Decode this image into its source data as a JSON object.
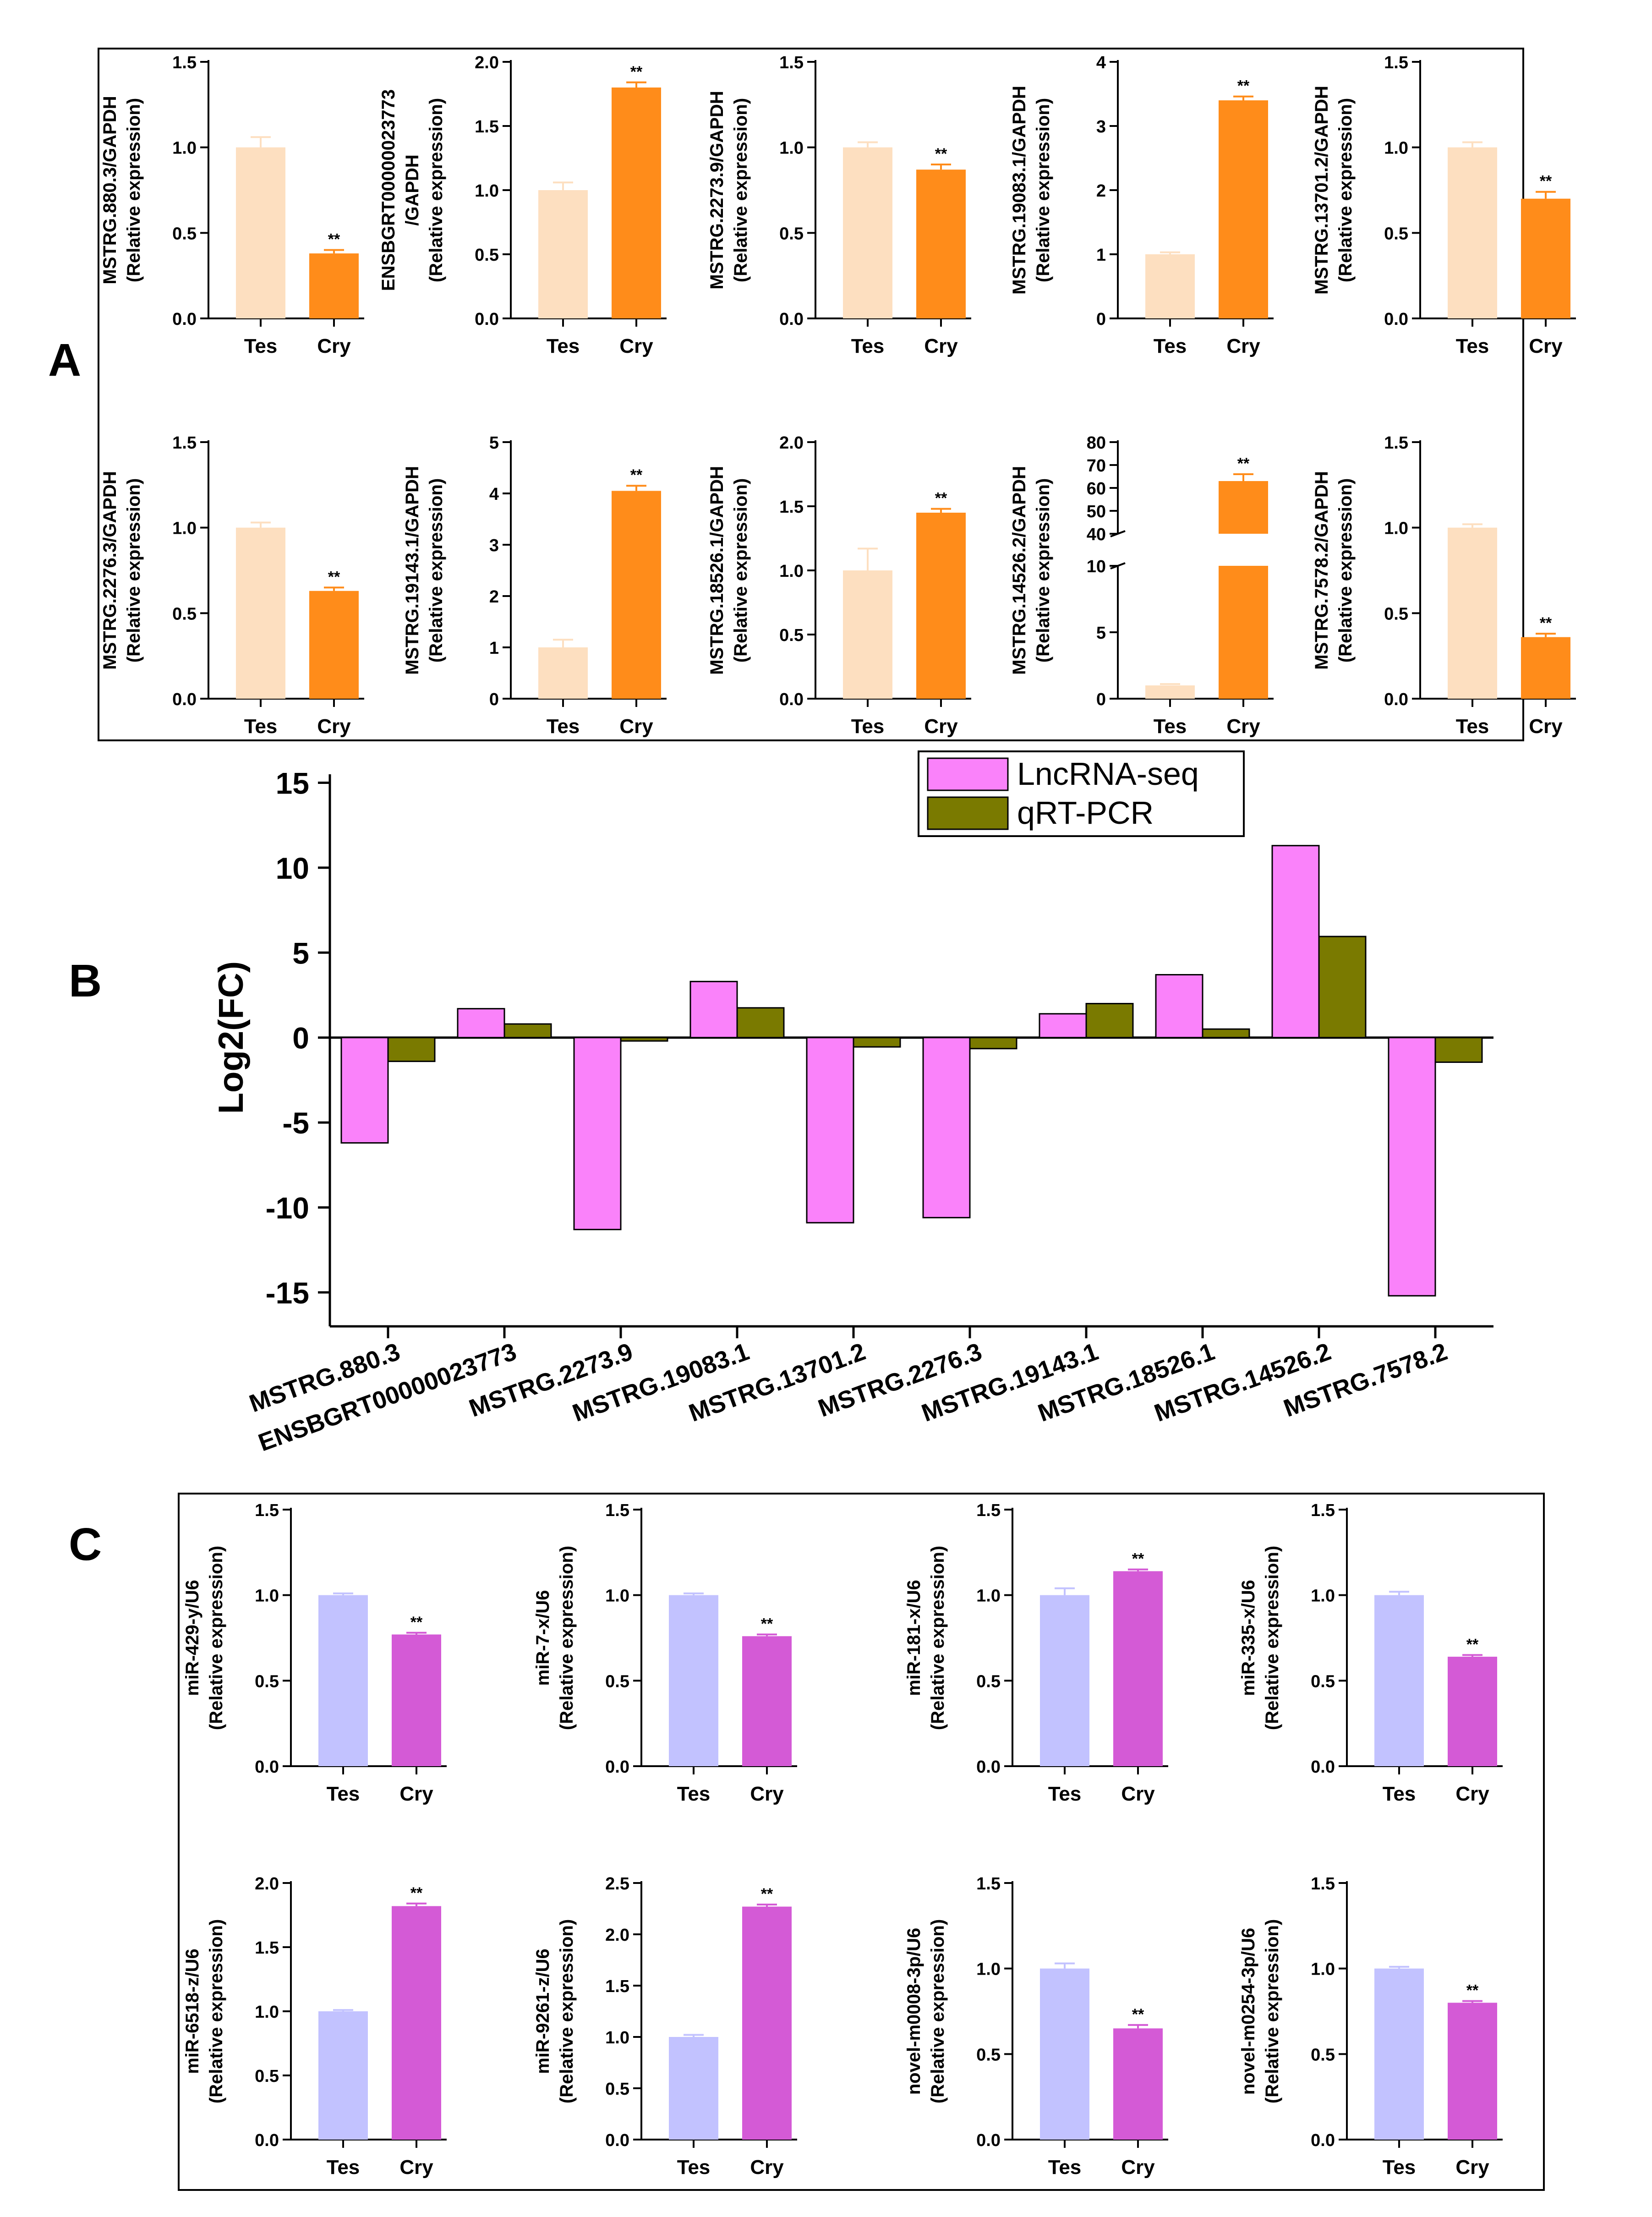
{
  "colors": {
    "lnc_tes": "#FDDFC0",
    "lnc_cry": "#FF8C1A",
    "mir_tes": "#C2C2FF",
    "mir_cry": "#D45AD6",
    "lncrna_seq": "#FA82FA",
    "qrt_pcr": "#7A7A00",
    "axis": "#000000"
  },
  "panel_labels": {
    "a": "A",
    "b": "B",
    "c": "C"
  },
  "chart_data": [
    {
      "id": "A",
      "type": "bar",
      "description": "qRT-PCR relative expression of lncRNAs (normalized to GAPDH), Tes vs Cry",
      "categories": [
        "Tes",
        "Cry"
      ],
      "plots": [
        {
          "ylabel": "MSTRG.880.3/GAPDH",
          "ylabel2": "(Relative expression)",
          "ylim": [
            0,
            1.5
          ],
          "ticks": [
            "0.0",
            "0.5",
            "1.0",
            "1.5"
          ],
          "tickvals": [
            0,
            0.5,
            1,
            1.5
          ],
          "values": [
            1.0,
            0.38
          ],
          "errors": [
            0.06,
            0.02
          ],
          "sig": "**"
        },
        {
          "ylabel": "ENSBGRT00000023773",
          "ylabel1b": "/GAPDH",
          "ylabel2": "(Relative expression)",
          "ylim": [
            0,
            2.0
          ],
          "ticks": [
            "0.0",
            "0.5",
            "1.0",
            "1.5",
            "2.0"
          ],
          "tickvals": [
            0,
            0.5,
            1,
            1.5,
            2
          ],
          "values": [
            1.0,
            1.8
          ],
          "errors": [
            0.06,
            0.04
          ],
          "sig": "**"
        },
        {
          "ylabel": "MSTRG.2273.9/GAPDH",
          "ylabel2": "(Relative expression)",
          "ylim": [
            0,
            1.5
          ],
          "ticks": [
            "0.0",
            "0.5",
            "1.0",
            "1.5"
          ],
          "tickvals": [
            0,
            0.5,
            1,
            1.5
          ],
          "values": [
            1.0,
            0.87
          ],
          "errors": [
            0.03,
            0.03
          ],
          "sig": "**"
        },
        {
          "ylabel": "MSTRG.19083.1/GAPDH",
          "ylabel2": "(Relative expression)",
          "ylim": [
            0,
            4
          ],
          "ticks": [
            "0",
            "1",
            "2",
            "3",
            "4"
          ],
          "tickvals": [
            0,
            1,
            2,
            3,
            4
          ],
          "values": [
            1.0,
            3.4
          ],
          "errors": [
            0.03,
            0.06
          ],
          "sig": "**"
        },
        {
          "ylabel": "MSTRG.13701.2/GAPDH",
          "ylabel2": "(Relative expression)",
          "ylim": [
            0,
            1.5
          ],
          "ticks": [
            "0.0",
            "0.5",
            "1.0",
            "1.5"
          ],
          "tickvals": [
            0,
            0.5,
            1,
            1.5
          ],
          "values": [
            1.0,
            0.7
          ],
          "errors": [
            0.03,
            0.04
          ],
          "sig": "**"
        },
        {
          "ylabel": "MSTRG.2276.3/GAPDH",
          "ylabel2": "(Relative expression)",
          "ylim": [
            0,
            1.5
          ],
          "ticks": [
            "0.0",
            "0.5",
            "1.0",
            "1.5"
          ],
          "tickvals": [
            0,
            0.5,
            1,
            1.5
          ],
          "values": [
            1.0,
            0.63
          ],
          "errors": [
            0.03,
            0.02
          ],
          "sig": "**"
        },
        {
          "ylabel": "MSTRG.19143.1/GAPDH",
          "ylabel2": "(Relative expression)",
          "ylim": [
            0,
            5
          ],
          "ticks": [
            "0",
            "1",
            "2",
            "3",
            "4",
            "5"
          ],
          "tickvals": [
            0,
            1,
            2,
            3,
            4,
            5
          ],
          "values": [
            1.0,
            4.05
          ],
          "errors": [
            0.15,
            0.1
          ],
          "sig": "**"
        },
        {
          "ylabel": "MSTRG.18526.1/GAPDH",
          "ylabel2": "(Relative expression)",
          "ylim": [
            0,
            2.0
          ],
          "ticks": [
            "0.0",
            "0.5",
            "1.0",
            "1.5",
            "2.0"
          ],
          "tickvals": [
            0,
            0.5,
            1,
            1.5,
            2
          ],
          "values": [
            1.0,
            1.45
          ],
          "errors": [
            0.17,
            0.03
          ],
          "sig": "**"
        },
        {
          "ylabel": "MSTRG.14526.2/GAPDH",
          "ylabel2": "(Relative expression)",
          "broken": true,
          "lower_ylim": [
            0,
            10
          ],
          "upper_ylim": [
            40,
            80
          ],
          "ticks": [
            "0",
            "5",
            "10",
            "40",
            "50",
            "60",
            "70",
            "80"
          ],
          "tickvals": [
            0,
            5,
            10,
            40,
            50,
            60,
            70,
            80
          ],
          "values": [
            1.0,
            63
          ],
          "errors": [
            0.1,
            3
          ],
          "sig": "**"
        },
        {
          "ylabel": "MSTRG.7578.2/GAPDH",
          "ylabel2": "(Relative expression)",
          "ylim": [
            0,
            1.5
          ],
          "ticks": [
            "0.0",
            "0.5",
            "1.0",
            "1.5"
          ],
          "tickvals": [
            0,
            0.5,
            1,
            1.5
          ],
          "values": [
            1.0,
            0.36
          ],
          "errors": [
            0.02,
            0.02
          ],
          "sig": "**"
        }
      ]
    },
    {
      "id": "B",
      "type": "bar",
      "ylabel": "Log2(FC)",
      "ylim": [
        -17,
        15.5
      ],
      "ticks": [
        "15",
        "10",
        "5",
        "0",
        "-5",
        "-10",
        "-15"
      ],
      "tickvals": [
        15,
        10,
        5,
        0,
        -5,
        -10,
        -15
      ],
      "categories": [
        "MSTRG.880.3",
        "ENSBGRT00000023773",
        "MSTRG.2273.9",
        "MSTRG.19083.1",
        "MSTRG.13701.2",
        "MSTRG.2276.3",
        "MSTRG.19143.1",
        "MSTRG.18526.1",
        "MSTRG.14526.2",
        "MSTRG.7578.2"
      ],
      "series": [
        {
          "name": "LncRNA-seq",
          "values": [
            -6.2,
            1.7,
            -11.3,
            3.3,
            -10.9,
            -10.6,
            1.4,
            3.7,
            11.3,
            -15.2
          ]
        },
        {
          "name": "qRT-PCR",
          "values": [
            -1.4,
            0.8,
            -0.2,
            1.75,
            -0.55,
            -0.65,
            2.0,
            0.5,
            5.95,
            -1.45
          ]
        }
      ],
      "legend": "top-right"
    },
    {
      "id": "C",
      "type": "bar",
      "description": "qRT-PCR relative expression of miRNAs (normalized to U6), Tes vs Cry",
      "categories": [
        "Tes",
        "Cry"
      ],
      "plots": [
        {
          "ylabel": "miR-429-y/U6",
          "ylabel2": "(Relative expression)",
          "ylim": [
            0,
            1.5
          ],
          "ticks": [
            "0.0",
            "0.5",
            "1.0",
            "1.5"
          ],
          "tickvals": [
            0,
            0.5,
            1,
            1.5
          ],
          "values": [
            1.0,
            0.77
          ],
          "errors": [
            0.01,
            0.01
          ],
          "sig": "**"
        },
        {
          "ylabel": "miR-7-x/U6",
          "ylabel2": "(Relative expression)",
          "ylim": [
            0,
            1.5
          ],
          "ticks": [
            "0.0",
            "0.5",
            "1.0",
            "1.5"
          ],
          "tickvals": [
            0,
            0.5,
            1,
            1.5
          ],
          "values": [
            1.0,
            0.76
          ],
          "errors": [
            0.01,
            0.01
          ],
          "sig": "**"
        },
        {
          "ylabel": "miR-181-x/U6",
          "ylabel2": "(Relative expression)",
          "ylim": [
            0,
            1.5
          ],
          "ticks": [
            "0.0",
            "0.5",
            "1.0",
            "1.5"
          ],
          "tickvals": [
            0,
            0.5,
            1,
            1.5
          ],
          "values": [
            1.0,
            1.14
          ],
          "errors": [
            0.04,
            0.01
          ],
          "sig": "**"
        },
        {
          "ylabel": "miR-335-x/U6",
          "ylabel2": "(Relative expression)",
          "ylim": [
            0,
            1.5
          ],
          "ticks": [
            "0.0",
            "0.5",
            "1.0",
            "1.5"
          ],
          "tickvals": [
            0,
            0.5,
            1,
            1.5
          ],
          "values": [
            1.0,
            0.64
          ],
          "errors": [
            0.02,
            0.01
          ],
          "sig": "**"
        },
        {
          "ylabel": "miR-6518-z/U6",
          "ylabel2": "(Relative expression)",
          "ylim": [
            0,
            2.0
          ],
          "ticks": [
            "0.0",
            "0.5",
            "1.0",
            "1.5",
            "2.0"
          ],
          "tickvals": [
            0,
            0.5,
            1,
            1.5,
            2
          ],
          "values": [
            1.0,
            1.82
          ],
          "errors": [
            0.01,
            0.02
          ],
          "sig": "**"
        },
        {
          "ylabel": "miR-9261-z/U6",
          "ylabel2": "(Relative expression)",
          "ylim": [
            0,
            2.5
          ],
          "ticks": [
            "0.0",
            "0.5",
            "1.0",
            "1.5",
            "2.0",
            "2.5"
          ],
          "tickvals": [
            0,
            0.5,
            1,
            1.5,
            2,
            2.5
          ],
          "values": [
            1.0,
            2.27
          ],
          "errors": [
            0.02,
            0.02
          ],
          "sig": "**"
        },
        {
          "ylabel": "novel-m0008-3p/U6",
          "ylabel2": "(Relative expression)",
          "ylim": [
            0,
            1.5
          ],
          "ticks": [
            "0.0",
            "0.5",
            "1.0",
            "1.5"
          ],
          "tickvals": [
            0,
            0.5,
            1,
            1.5
          ],
          "values": [
            1.0,
            0.65
          ],
          "errors": [
            0.03,
            0.02
          ],
          "sig": "**"
        },
        {
          "ylabel": "novel-m0254-3p/U6",
          "ylabel2": "(Relative expression)",
          "ylim": [
            0,
            1.5
          ],
          "ticks": [
            "0.0",
            "0.5",
            "1.0",
            "1.5"
          ],
          "tickvals": [
            0,
            0.5,
            1,
            1.5
          ],
          "values": [
            1.0,
            0.8
          ],
          "errors": [
            0.01,
            0.01
          ],
          "sig": "**"
        }
      ]
    }
  ]
}
